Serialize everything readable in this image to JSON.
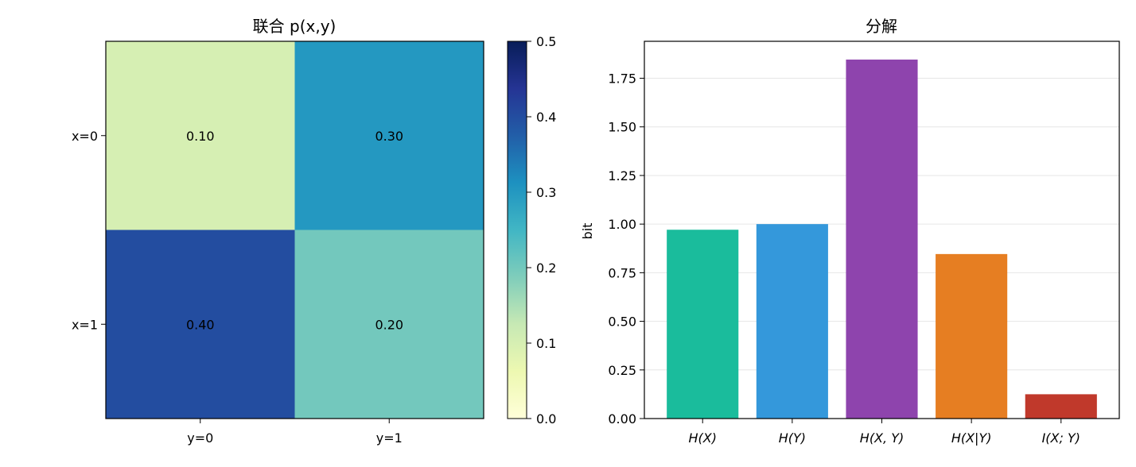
{
  "chart_data": [
    {
      "type": "heatmap",
      "title": "联合 p(x,y)",
      "rows": [
        "x=0",
        "x=1"
      ],
      "columns": [
        "y=0",
        "y=1"
      ],
      "values": [
        [
          0.1,
          0.3
        ],
        [
          0.4,
          0.2
        ]
      ],
      "cell_labels": [
        [
          "0.10",
          "0.30"
        ],
        [
          "0.40",
          "0.20"
        ]
      ],
      "colorbar": {
        "colormap": "YlGnBu",
        "range": [
          0,
          0.5
        ],
        "ticks": [
          "0.0",
          "0.1",
          "0.2",
          "0.3",
          "0.4",
          "0.5"
        ]
      }
    },
    {
      "type": "bar",
      "title": "分解",
      "categories": [
        "H(X)",
        "H(Y)",
        "H(X, Y)",
        "H(X|Y)",
        "I(X; Y)"
      ],
      "values": [
        0.971,
        1.0,
        1.846,
        0.846,
        0.125
      ],
      "colors": [
        "#1abc9c",
        "#3498db",
        "#8e44ad",
        "#e67e22",
        "#c0392b"
      ],
      "ylabel": "bit",
      "ylim": [
        0,
        1.94
      ],
      "yticks": [
        "0.00",
        "0.25",
        "0.50",
        "0.75",
        "1.00",
        "1.25",
        "1.50",
        "1.75"
      ],
      "grid": "horizontal"
    }
  ]
}
